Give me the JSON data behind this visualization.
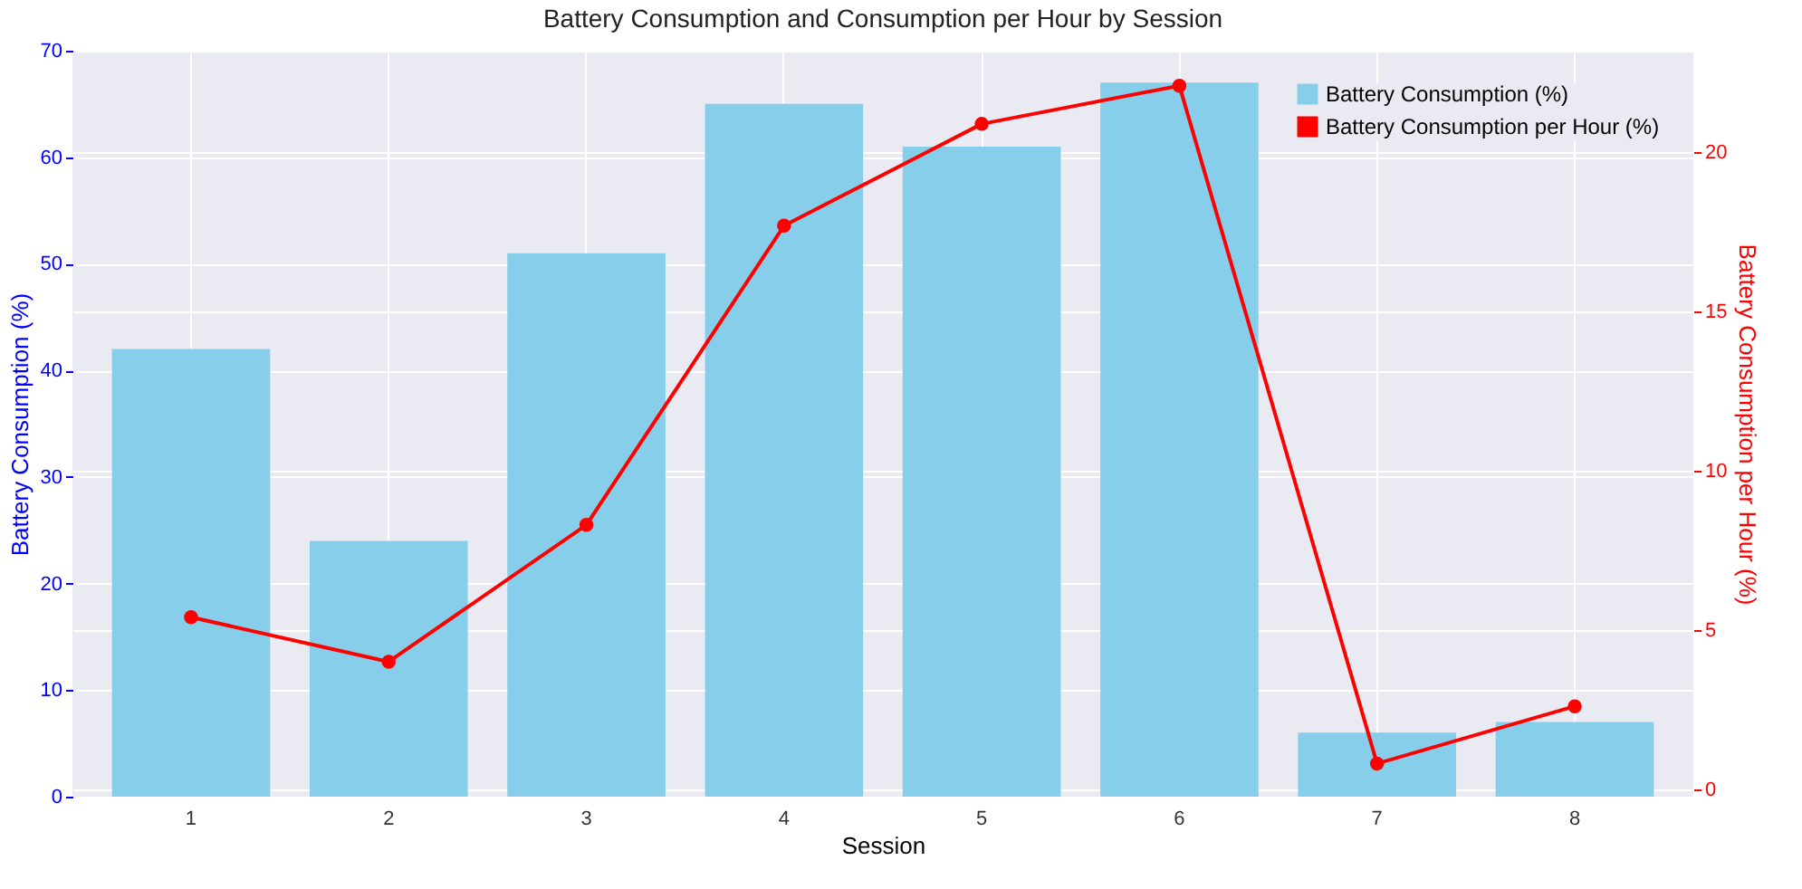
{
  "chart_data": {
    "type": "bar",
    "title": "Battery Consumption and Consumption per Hour by Session",
    "xlabel": "Session",
    "ylabel": "Battery Consumption (%)",
    "y2label": "Battery Consumption per Hour (%)",
    "categories": [
      "1",
      "2",
      "3",
      "4",
      "5",
      "6",
      "7",
      "8"
    ],
    "series": [
      {
        "name": "Battery Consumption (%)",
        "color": "#87ceeb",
        "values": [
          42,
          24,
          51,
          65,
          61,
          67,
          6,
          7
        ]
      },
      {
        "name": "Battery Consumption per Hour (%)",
        "type": "line",
        "axis": "y2",
        "color": "#ff0000",
        "values": [
          5.4,
          4.0,
          8.3,
          17.7,
          20.9,
          22.1,
          0.8,
          2.6
        ]
      }
    ],
    "ylim": [
      0,
      70
    ],
    "yticks": [
      0,
      10,
      20,
      30,
      40,
      50,
      60,
      70
    ],
    "y2lim": [
      -0.24,
      23.2
    ],
    "y2ticks": [
      0,
      5,
      10,
      15,
      20
    ],
    "grid": true,
    "legend": "top right",
    "marker": "circle",
    "line_style": "solid"
  }
}
